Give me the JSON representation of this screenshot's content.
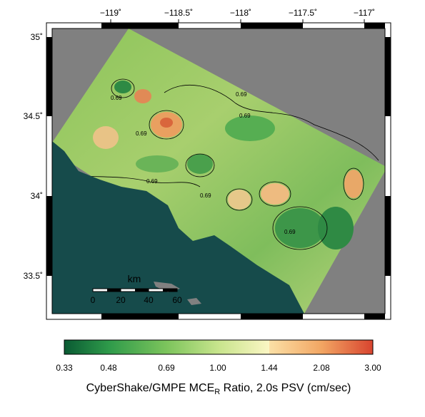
{
  "map": {
    "x_ticks": [
      "−119˚",
      "−118.5˚",
      "−118˚",
      "−117.5˚",
      "−117˚"
    ],
    "y_ticks": [
      "35˚",
      "34.5˚",
      "34˚",
      "33.5˚"
    ],
    "contour_labels": [
      "0.69",
      "0.69",
      "0.69",
      "0.69",
      "0.69",
      "0.69",
      "0.69"
    ]
  },
  "scale_bar": {
    "title": "km",
    "labels": [
      "0",
      "20",
      "40",
      "60"
    ]
  },
  "colorbar": {
    "labels": [
      "0.33",
      "0.48",
      "0.69",
      "1.00",
      "1.44",
      "2.08",
      "3.00"
    ],
    "title": {
      "text": "CyberShake/GMPE MCE",
      "subscript": "R",
      "rest": " Ratio, 2.0s PSV (cm/sec)"
    }
  }
}
